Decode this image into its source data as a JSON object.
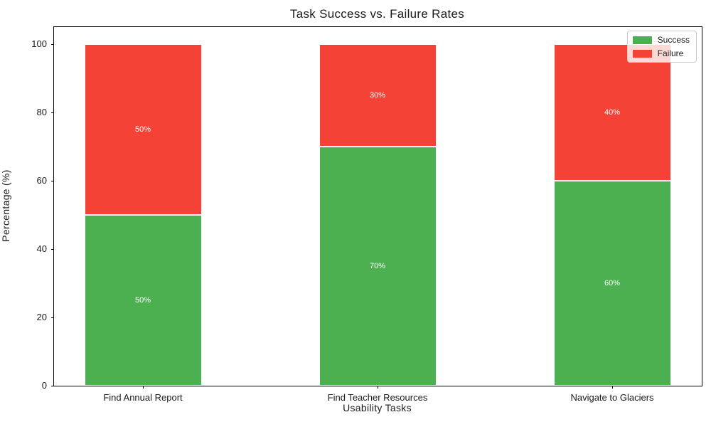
{
  "chart_data": {
    "type": "bar",
    "stacked": true,
    "title": "Task Success vs. Failure Rates",
    "xlabel": "Usability Tasks",
    "ylabel": "Percentage (%)",
    "categories": [
      "Find Annual Report",
      "Find Teacher Resources",
      "Navigate to Glaciers"
    ],
    "series": [
      {
        "name": "Success",
        "color": "#4CAF50",
        "values": [
          50,
          70,
          60
        ],
        "labels": [
          "50%",
          "70%",
          "60%"
        ]
      },
      {
        "name": "Failure",
        "color": "#F44336",
        "values": [
          50,
          30,
          40
        ],
        "labels": [
          "50%",
          "30%",
          "40%"
        ]
      }
    ],
    "yticks": [
      "0",
      "20",
      "40",
      "60",
      "80",
      "100"
    ],
    "ylim": [
      0,
      105
    ],
    "grid": false,
    "bar_label_color": "#ffffff",
    "bar_edge_color": "#ffffff",
    "legend": {
      "position": "upper right",
      "entries": [
        {
          "label": "Success",
          "color": "#4CAF50"
        },
        {
          "label": "Failure",
          "color": "#F44336"
        }
      ]
    }
  }
}
